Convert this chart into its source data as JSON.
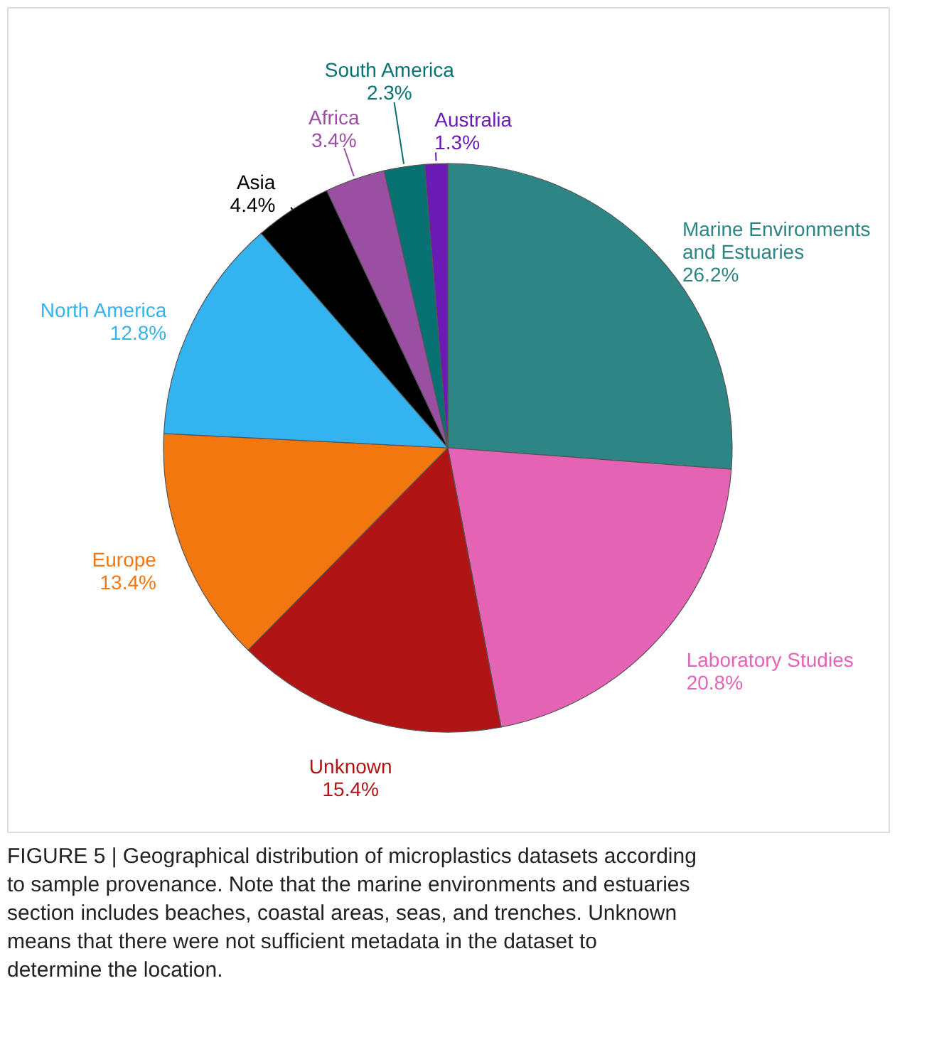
{
  "chart_data": {
    "type": "pie",
    "categories": [
      "Marine Environments and Estuaries",
      "Laboratory Studies",
      "Unknown",
      "Europe",
      "North America",
      "Asia",
      "Africa",
      "South America",
      "Australia"
    ],
    "values": [
      26.2,
      20.8,
      15.4,
      13.4,
      12.8,
      4.4,
      3.4,
      2.3,
      1.3
    ],
    "value_labels": [
      "26.2%",
      "20.8%",
      "15.4%",
      "13.4%",
      "12.8%",
      "4.4%",
      "3.4%",
      "2.3%",
      "1.3%"
    ],
    "colors": [
      "#2e8585",
      "#e463b4",
      "#b01414",
      "#f2770f",
      "#33b4f0",
      "#000000",
      "#9b4fa3",
      "#087272",
      "#6a1bb5"
    ],
    "legend": false,
    "annotations": [
      "FIGURE 5 | Geographical distribution of microplastics datasets according to sample provenance. Note that the marine environments and estuaries section includes beaches, coastal areas, seas, and trenches. Unknown means that there were not sufficient metadata in the dataset to determine the location."
    ]
  }
}
